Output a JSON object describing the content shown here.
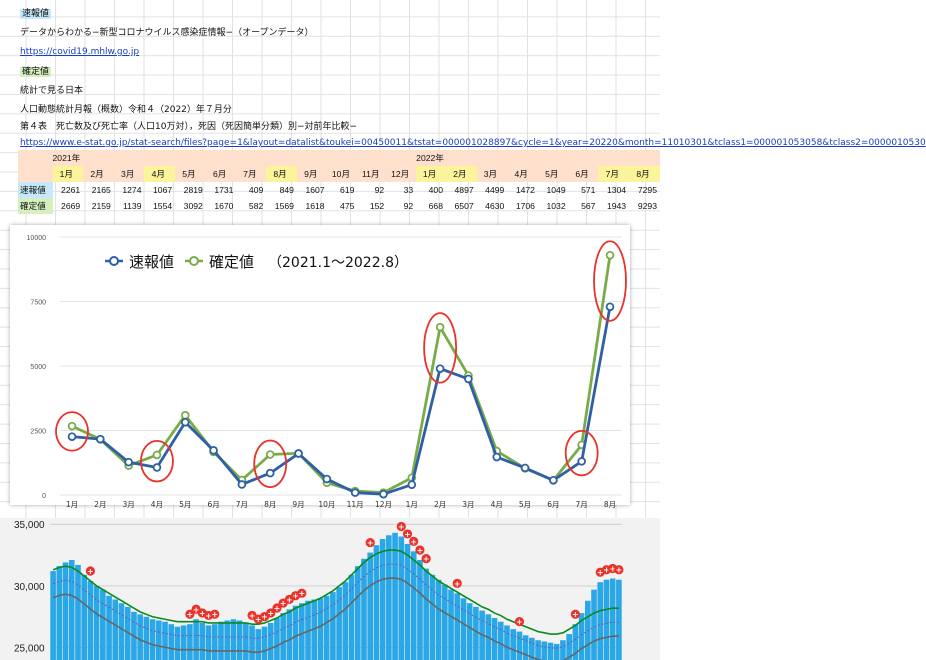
{
  "sheet": {
    "label_sokuho": "速報値",
    "title1": "データからわかる−新型コロナウイルス感染症情報−（オープンデータ）",
    "link1": "https://covid19.mhlw.go.jp",
    "label_kakutei": "確定値",
    "title2": "統計で見る日本",
    "title3": "人口動態統計月報（概数）令和４（2022）年７月分",
    "title4": "第４表　死亡数及び死亡率（人口10万対），死因（死因簡単分類）別−対前年比較−",
    "link2": "https://www.e-stat.go.jp/stat-search/files?page=1&layout=datalist&toukei=00450011&tstat=000001028897&cycle=1&year=20220&month=11010301&tclass1=000001053058&tclass2=0000010530"
  },
  "table": {
    "year1": "2021年",
    "year2": "2022年",
    "months": [
      "1月",
      "2月",
      "3月",
      "4月",
      "5月",
      "6月",
      "7月",
      "8月",
      "9月",
      "10月",
      "11月",
      "12月",
      "1月",
      "2月",
      "3月",
      "4月",
      "5月",
      "6月",
      "7月",
      "8月"
    ],
    "highlight_months": [
      0,
      3,
      7,
      12,
      13,
      18,
      19
    ],
    "row1_label": "速報値",
    "row2_label": "確定値"
  },
  "chart_data": [
    {
      "type": "line",
      "categories": [
        "1月",
        "2月",
        "3月",
        "4月",
        "5月",
        "6月",
        "7月",
        "8月",
        "9月",
        "10月",
        "11月",
        "12月",
        "1月",
        "2月",
        "3月",
        "4月",
        "5月",
        "6月",
        "7月",
        "8月"
      ],
      "series": [
        {
          "name": "速報値",
          "color": "#2f5fa5",
          "values": [
            2261,
            2165,
            1274,
            1067,
            2819,
            1731,
            409,
            849,
            1607,
            619,
            92,
            33,
            400,
            4897,
            4499,
            1472,
            1049,
            571,
            1304,
            7295
          ]
        },
        {
          "name": "確定値",
          "color": "#7aab4a",
          "values": [
            2669,
            2159,
            1139,
            1554,
            3092,
            1670,
            582,
            1569,
            1618,
            475,
            152,
            92,
            668,
            6507,
            4630,
            1706,
            1032,
            567,
            1943,
            9293
          ]
        }
      ],
      "title": "（2021.1～2022.8）",
      "yticks": [
        0,
        2500,
        5000,
        7500,
        10000
      ],
      "ylim": [
        0,
        10000
      ],
      "grid": true,
      "legend": "top-left",
      "highlight_circles": [
        0,
        3,
        7,
        13,
        18,
        19
      ]
    },
    {
      "type": "bar",
      "yticks_labels": [
        "35,000",
        "30,000",
        "25,000"
      ],
      "ylim": [
        24000,
        35500
      ],
      "values": [
        31200,
        31600,
        31900,
        32100,
        31700,
        30900,
        30400,
        30000,
        29700,
        29200,
        28900,
        28600,
        28300,
        27900,
        27700,
        27500,
        27300,
        27200,
        27100,
        26900,
        26700,
        26800,
        26900,
        27300,
        27000,
        26800,
        26900,
        27100,
        27200,
        27300,
        27200,
        27000,
        26800,
        26500,
        26700,
        27000,
        27400,
        27800,
        28100,
        28400,
        28600,
        28800,
        28900,
        29000,
        29200,
        29500,
        29900,
        30300,
        30900,
        31600,
        32200,
        32700,
        33300,
        33800,
        34100,
        34300,
        34000,
        33400,
        32800,
        32100,
        31400,
        30900,
        30500,
        30100,
        29700,
        29400,
        29000,
        28600,
        28300,
        28000,
        27700,
        27400,
        27100,
        26800,
        26500,
        26300,
        26000,
        25800,
        25600,
        25500,
        25400,
        25300,
        25600,
        26100,
        26900,
        27800,
        28800,
        29700,
        30300,
        30500,
        30600,
        30500
      ],
      "line_green": [
        31300,
        31500,
        31600,
        31500,
        31200,
        30800,
        30400,
        30000,
        29700,
        29400,
        29100,
        28800,
        28500,
        28200,
        27900,
        27700,
        27500,
        27400,
        27300,
        27200,
        27100,
        27100,
        27100,
        27100,
        27100,
        27000,
        27000,
        27000,
        27000,
        27000,
        27000,
        27000,
        26900,
        26900,
        27000,
        27200,
        27400,
        27700,
        27900,
        28200,
        28400,
        28600,
        28800,
        29000,
        29300,
        29600,
        30000,
        30400,
        30900,
        31400,
        31900,
        32300,
        32600,
        32800,
        32900,
        32900,
        32800,
        32500,
        32100,
        31700,
        31200,
        30800,
        30400,
        30100,
        29800,
        29500,
        29200,
        28900,
        28600,
        28300,
        28100,
        27800,
        27600,
        27300,
        27100,
        26900,
        26700,
        26500,
        26300,
        26200,
        26100,
        26100,
        26200,
        26500,
        26800,
        27200,
        27500,
        27800,
        28000,
        28100,
        28200,
        28200
      ],
      "plus_markers": [
        6,
        22,
        23,
        24,
        25,
        26,
        32,
        33,
        34,
        35,
        36,
        37,
        38,
        39,
        40,
        51,
        56,
        57,
        58,
        59,
        60,
        65,
        75,
        84,
        88,
        89,
        90,
        91
      ]
    }
  ]
}
